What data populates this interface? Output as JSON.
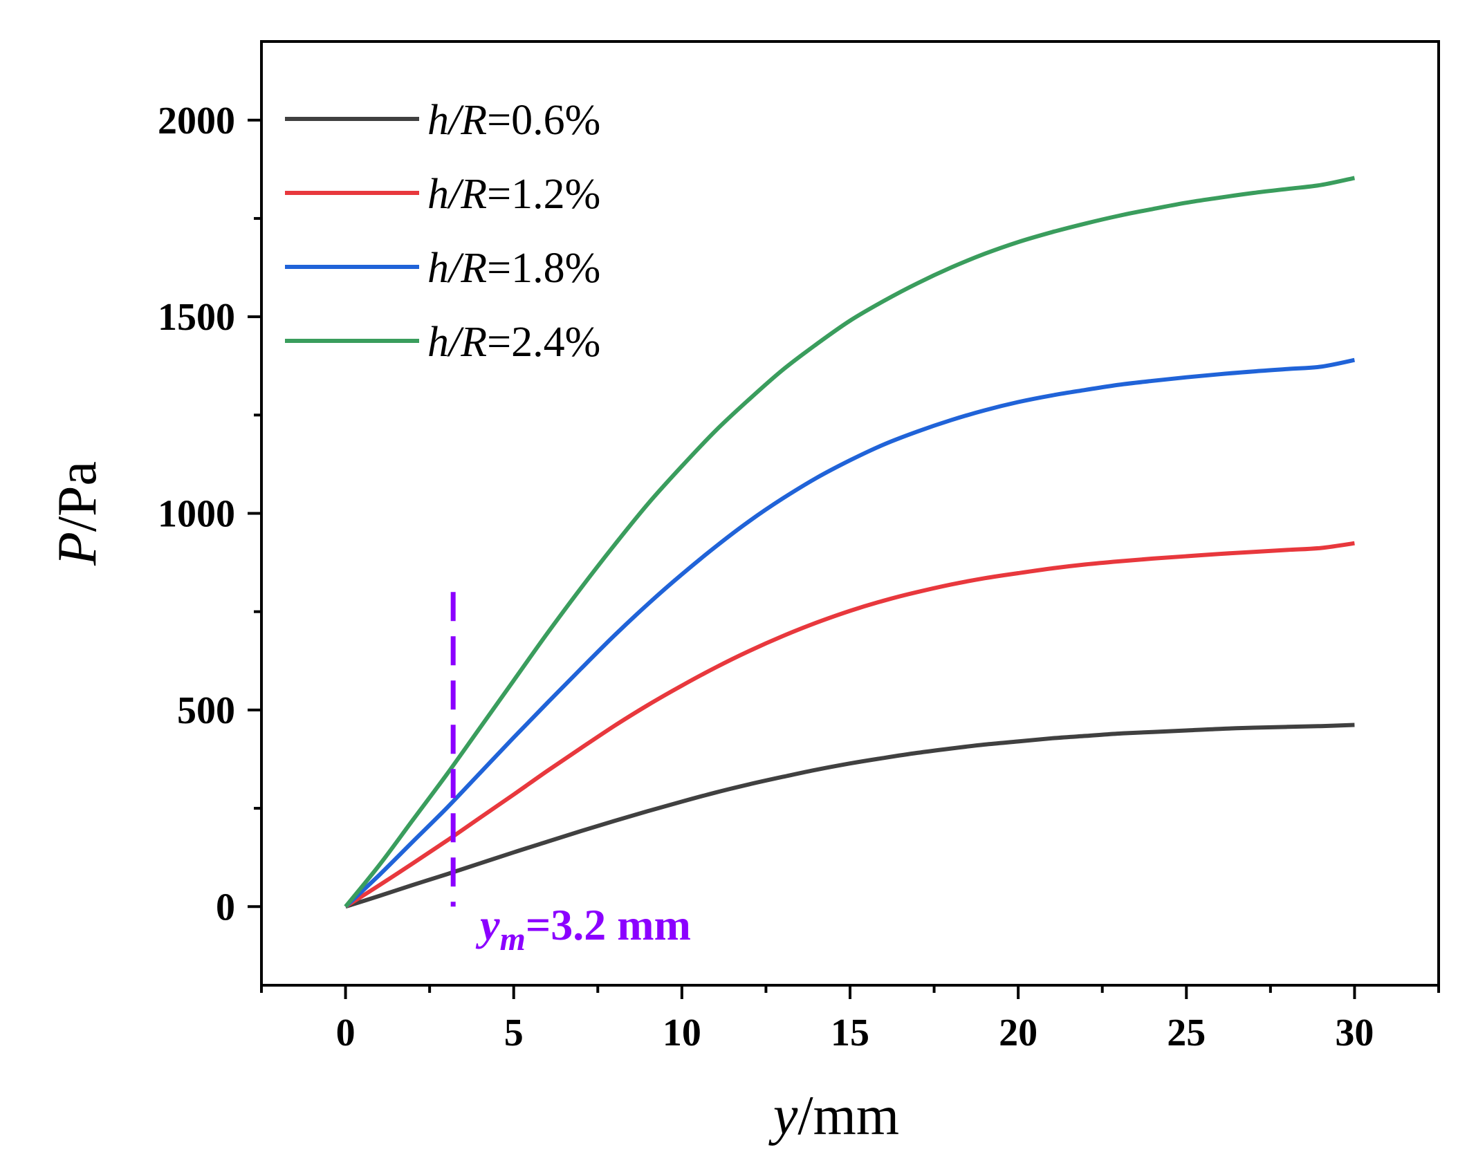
{
  "chart_data": {
    "type": "line",
    "title": "",
    "xlabel": {
      "var": "y",
      "unit": "/mm"
    },
    "ylabel": {
      "var": "P",
      "unit": "/Pa"
    },
    "xlim": [
      -2.5,
      32.5
    ],
    "ylim": [
      -200,
      2200
    ],
    "xticks": [
      0,
      5,
      10,
      15,
      20,
      25,
      30
    ],
    "xtick_labels": [
      "0",
      "5",
      "10",
      "15",
      "20",
      "25",
      "30"
    ],
    "yticks": [
      0,
      500,
      1000,
      1500,
      2000
    ],
    "ytick_labels": [
      "0",
      "500",
      "1000",
      "1500",
      "2000"
    ],
    "grid": false,
    "legend_position": "top-left",
    "x": [
      0,
      1,
      2,
      3,
      4,
      5,
      6,
      7,
      8,
      9,
      10,
      11,
      12,
      13,
      14,
      15,
      16,
      17,
      18,
      19,
      20,
      21,
      22,
      23,
      24,
      25,
      26,
      27,
      28,
      29,
      30
    ],
    "series": [
      {
        "name_var": "h/R",
        "name_value": "=0.6%",
        "color": "#404040",
        "values": [
          0,
          27,
          55,
          82,
          110,
          138,
          165,
          192,
          218,
          243,
          267,
          290,
          311,
          330,
          348,
          364,
          378,
          391,
          402,
          412,
          420,
          428,
          434,
          440,
          444,
          448,
          452,
          455,
          457,
          459,
          462
        ]
      },
      {
        "name_var": "h/R",
        "name_value": "=1.2%",
        "color": "#e8383d",
        "values": [
          0,
          54,
          110,
          167,
          226,
          285,
          345,
          403,
          460,
          513,
          562,
          608,
          650,
          688,
          722,
          752,
          778,
          800,
          819,
          835,
          848,
          860,
          870,
          878,
          885,
          891,
          897,
          902,
          907,
          912,
          924
        ]
      },
      {
        "name_var": "h/R",
        "name_value": "=1.8%",
        "color": "#2063d8",
        "values": [
          0,
          80,
          165,
          250,
          340,
          430,
          518,
          605,
          690,
          770,
          845,
          915,
          980,
          1038,
          1090,
          1135,
          1175,
          1208,
          1237,
          1262,
          1283,
          1300,
          1314,
          1327,
          1337,
          1346,
          1354,
          1361,
          1367,
          1373,
          1390
        ]
      },
      {
        "name_var": "h/R",
        "name_value": "=2.4%",
        "color": "#3a9d5d",
        "values": [
          0,
          105,
          220,
          335,
          455,
          575,
          695,
          810,
          920,
          1025,
          1120,
          1210,
          1290,
          1365,
          1430,
          1490,
          1540,
          1585,
          1625,
          1660,
          1690,
          1715,
          1737,
          1757,
          1774,
          1790,
          1803,
          1815,
          1825,
          1835,
          1853
        ]
      }
    ],
    "annotations": [
      {
        "type": "vline",
        "x": 3.2,
        "y_range": [
          0,
          800
        ],
        "color": "#8b00ff",
        "style": "dashed"
      },
      {
        "type": "text",
        "var": "y",
        "sub": "m",
        "text": "=3.2 mm",
        "x": 4.0,
        "y": -45,
        "color": "#8b00ff"
      }
    ]
  }
}
